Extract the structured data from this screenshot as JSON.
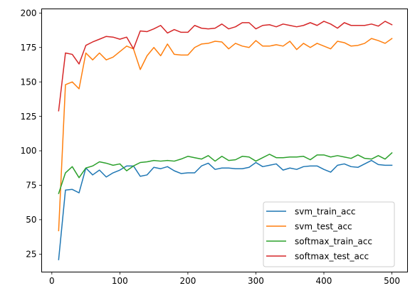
{
  "chart_data": {
    "type": "line",
    "title": "",
    "xlabel": "",
    "ylabel": "",
    "xlim": [
      -15,
      523
    ],
    "ylim": [
      12,
      203
    ],
    "xticks": [
      0,
      100,
      200,
      300,
      400,
      500
    ],
    "yticks": [
      25,
      50,
      75,
      100,
      125,
      150,
      175,
      200
    ],
    "grid": false,
    "legend_position": "lower-right",
    "x": [
      10,
      20,
      30,
      40,
      50,
      60,
      70,
      80,
      90,
      100,
      110,
      120,
      130,
      140,
      150,
      160,
      170,
      180,
      190,
      200,
      210,
      220,
      230,
      240,
      250,
      260,
      270,
      280,
      290,
      300,
      310,
      320,
      330,
      340,
      350,
      360,
      370,
      380,
      390,
      400,
      410,
      420,
      430,
      440,
      450,
      460,
      470,
      480,
      490,
      500
    ],
    "series": [
      {
        "name": "svm_train_acc",
        "color": "#1f77b4",
        "values": [
          21,
          71.5,
          72,
          69.5,
          87.5,
          82.5,
          86,
          81,
          84,
          86,
          89,
          89,
          81.5,
          82.5,
          88,
          87,
          88.5,
          85.5,
          83.5,
          84,
          84,
          89,
          91,
          86.5,
          87.5,
          87.5,
          87,
          87,
          88,
          91.5,
          88.5,
          89.5,
          90.5,
          86,
          87.5,
          86.5,
          88.5,
          89,
          89,
          86.5,
          84.5,
          89.5,
          90.5,
          88.5,
          88,
          90.5,
          93,
          90,
          89.5,
          89.5
        ]
      },
      {
        "name": "svm_test_acc",
        "color": "#ff7f0e",
        "values": [
          42,
          148,
          150,
          145,
          171,
          166,
          171,
          166,
          168,
          172,
          176,
          174,
          159,
          169,
          175,
          169,
          177.5,
          170,
          169.5,
          169.5,
          175,
          177.5,
          178,
          179.5,
          179,
          174,
          178,
          176,
          175,
          180,
          176,
          176,
          177,
          176,
          179.5,
          173.5,
          178,
          175,
          178,
          176,
          174,
          179.5,
          178.5,
          176,
          176.5,
          178,
          181.5,
          180,
          178,
          181.5
        ]
      },
      {
        "name": "softmax_train_acc",
        "color": "#2ca02c",
        "values": [
          69,
          84,
          88.5,
          80.5,
          87.5,
          89,
          92,
          91,
          89.5,
          90.5,
          85.5,
          89,
          91.5,
          92,
          93,
          92.5,
          93,
          92.5,
          94,
          96,
          95,
          94,
          96.5,
          92.5,
          96,
          93,
          93.5,
          96,
          95.5,
          92.5,
          95,
          97.5,
          95,
          95,
          95.5,
          95.5,
          96,
          93.5,
          97,
          97,
          95.5,
          96.5,
          95.5,
          94.5,
          97,
          94.5,
          94,
          96.5,
          94,
          98.5
        ]
      },
      {
        "name": "softmax_test_acc",
        "color": "#d62728",
        "values": [
          129,
          171,
          170,
          163,
          176.5,
          179,
          181,
          183,
          182.5,
          181,
          182.5,
          174,
          187,
          186.5,
          188.5,
          191,
          185.5,
          188,
          186,
          186,
          191,
          189,
          188.5,
          189,
          192,
          188.5,
          190,
          193,
          193,
          188.5,
          191,
          191.5,
          190,
          192,
          191,
          190,
          191,
          193,
          191,
          194,
          192,
          189,
          193,
          191,
          191,
          191,
          192,
          190.5,
          194,
          191.5
        ]
      }
    ]
  }
}
